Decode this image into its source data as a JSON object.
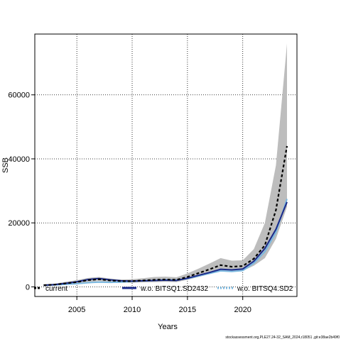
{
  "chart_data": {
    "type": "line",
    "title": "",
    "xlabel": "Years",
    "ylabel": "SSB",
    "xlim": [
      2001.2,
      2024.9
    ],
    "ylim": [
      -3000,
      79000
    ],
    "grid": true,
    "x_ticks": [
      2005,
      2010,
      2015,
      2020
    ],
    "y_ticks": [
      0,
      20000,
      40000,
      60000
    ],
    "x": [
      2002,
      2003,
      2004,
      2005,
      2006,
      2007,
      2008,
      2009,
      2010,
      2011,
      2012,
      2013,
      2014,
      2015,
      2016,
      2017,
      2018,
      2019,
      2020,
      2021,
      2022,
      2023,
      2024
    ],
    "series": [
      {
        "name": "current",
        "style": "dashed",
        "color": "#000000",
        "values": [
          500,
          700,
          1100,
          1500,
          2100,
          2400,
          2000,
          1800,
          1800,
          2000,
          2200,
          2300,
          2200,
          3100,
          4300,
          5500,
          6800,
          6300,
          6500,
          8800,
          13000,
          24000,
          44000
        ],
        "band_lower": [
          200,
          400,
          700,
          1000,
          1500,
          1800,
          1500,
          1300,
          1300,
          1400,
          1500,
          1600,
          1500,
          2200,
          3100,
          4000,
          5000,
          4800,
          5000,
          6600,
          9000,
          15000,
          25000
        ],
        "band_upper": [
          900,
          1000,
          1600,
          2100,
          2800,
          3100,
          2600,
          2300,
          2400,
          2700,
          3100,
          3200,
          3000,
          4200,
          5700,
          7300,
          9000,
          8200,
          8300,
          11800,
          20000,
          38000,
          76000
        ]
      },
      {
        "name": "w.o. BITSQ1.SD2432",
        "style": "solid",
        "color": "#1a2a8a",
        "values": [
          500,
          700,
          1100,
          1600,
          2300,
          2600,
          2200,
          1900,
          1800,
          1900,
          2000,
          2100,
          2000,
          2700,
          3600,
          4500,
          5500,
          5300,
          5600,
          8000,
          12000,
          18000,
          26500
        ]
      },
      {
        "name": "w.o. BITSQ4.SD2",
        "style": "solid",
        "color": "#7ab8e0",
        "values": [
          500,
          600,
          800,
          1000,
          1300,
          1500,
          1400,
          1500,
          1700,
          1900,
          2000,
          2200,
          2100,
          2600,
          3400,
          4200,
          5000,
          4800,
          5100,
          7400,
          11000,
          17000,
          27500
        ]
      }
    ],
    "legend": {
      "placement": "bottom",
      "entries": [
        "current",
        "w.o. BITSQ1.SD2432",
        "w.o. BITSQ4.SD2"
      ]
    },
    "footer": "stockassessment.org,PLE27.24-32_SAM_2024,r18051 ,git:e38ae2b49f0"
  }
}
